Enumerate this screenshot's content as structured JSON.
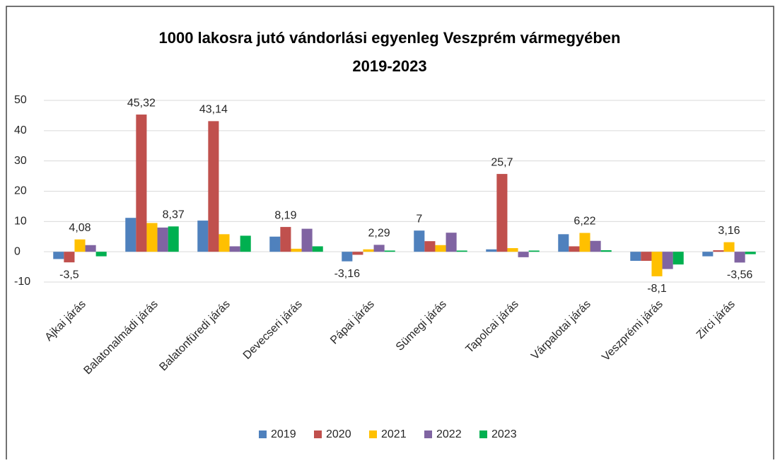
{
  "chart_data": {
    "type": "bar",
    "title": [
      "1000 lakosra jutó vándorlási egyenleg Veszprém vármegyében",
      "2019-2023"
    ],
    "categories": [
      "Ajkai járás",
      "Balatonalmádi járás",
      "Balatonfüredi járás",
      "Devecseri járás",
      "Pápai járás",
      "Sümegi járás",
      "Tapolcai járás",
      "Várpalotai járás",
      "Veszprémi járás",
      "Zirci járás"
    ],
    "series": [
      {
        "name": "2019",
        "color": "#4f81bd",
        "values": [
          -2.4,
          11.2,
          10.3,
          5,
          -3.16,
          7,
          0.8,
          5.8,
          -3,
          -1.5
        ],
        "value_labels": [
          null,
          null,
          null,
          null,
          "-3,16",
          "7",
          null,
          null,
          null,
          null
        ]
      },
      {
        "name": "2020",
        "color": "#c0504d",
        "values": [
          -3.5,
          45.32,
          43.14,
          8.19,
          -1,
          3.5,
          25.7,
          1.8,
          -3,
          0.5
        ],
        "value_labels": [
          "-3,5",
          "45,32",
          "43,14",
          "8,19",
          null,
          null,
          "25,7",
          null,
          null,
          null
        ]
      },
      {
        "name": "2021",
        "color": "#ffc000",
        "values": [
          4.08,
          9.5,
          5.8,
          1,
          0.8,
          2.2,
          1.2,
          6.22,
          -8.1,
          3.16
        ],
        "value_labels": [
          "4,08",
          null,
          null,
          null,
          null,
          null,
          null,
          "6,22",
          "-8,1",
          "3,16"
        ]
      },
      {
        "name": "2022",
        "color": "#8064a2",
        "values": [
          2.2,
          8,
          1.8,
          7.6,
          2.29,
          6.3,
          -1.8,
          3.6,
          -5.7,
          -3.56
        ],
        "value_labels": [
          null,
          null,
          null,
          null,
          "2,29",
          null,
          null,
          null,
          null,
          "-3,56"
        ]
      },
      {
        "name": "2023",
        "color": "#00b050",
        "values": [
          -1.5,
          8.37,
          5.3,
          1.8,
          0.4,
          0.4,
          0.4,
          0.5,
          -4.2,
          -0.8
        ],
        "value_labels": [
          null,
          "8,37",
          null,
          null,
          null,
          null,
          null,
          null,
          null,
          null
        ]
      }
    ],
    "ylim": [
      -10,
      50
    ],
    "yticks": [
      -10,
      0,
      10,
      20,
      30,
      40,
      50
    ],
    "grid": true,
    "legend": "bottom"
  }
}
